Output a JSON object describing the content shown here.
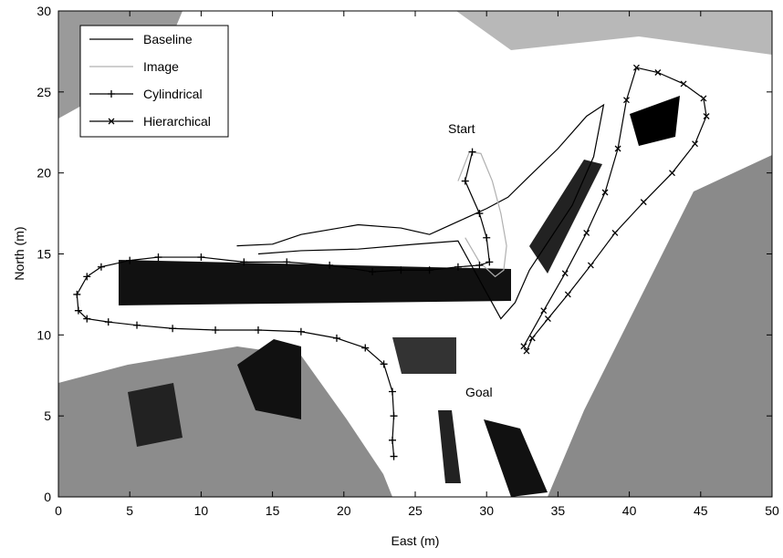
{
  "chart_data": {
    "type": "line",
    "xlabel": "East (m)",
    "ylabel": "North (m)",
    "xlim": [
      0,
      50
    ],
    "xticks": [
      0,
      5,
      10,
      15,
      20,
      25,
      30,
      35,
      40,
      45,
      50
    ],
    "ylim": [
      0,
      30
    ],
    "yticks": [
      0,
      5,
      10,
      15,
      20,
      25,
      30
    ],
    "legend": "upper left",
    "annotations": [
      "Start",
      "Goal"
    ],
    "series": [
      {
        "name": "Baseline",
        "color": "#000000",
        "marker": "none",
        "x": [
          12.5,
          15,
          17,
          21,
          24,
          26,
          28,
          30,
          31.5,
          33,
          35,
          37,
          38.2,
          37.5,
          36,
          34.5,
          33,
          32,
          31,
          28,
          25,
          21,
          17,
          14
        ],
        "values": [
          15.5,
          15.6,
          16.2,
          16.8,
          16.6,
          16.2,
          17,
          17.8,
          18.5,
          19.8,
          21.5,
          23.5,
          24.2,
          21,
          18,
          16,
          14,
          12,
          11,
          15.8,
          15.6,
          15.3,
          15.2,
          15
        ]
      },
      {
        "name": "Image",
        "color": "#b0b0b0",
        "marker": "none",
        "x": [
          28,
          28.8,
          29.6,
          30.4,
          31,
          31.4,
          31.2,
          30.6,
          29.5,
          28.5
        ],
        "values": [
          19.5,
          21.3,
          21.2,
          19.5,
          17.5,
          15.5,
          14,
          13.6,
          14.5,
          16
        ]
      },
      {
        "name": "Cylindrical",
        "color": "#000000",
        "marker": "plus",
        "x": [
          29,
          28.5,
          29.5,
          30,
          30.2,
          29.5,
          28,
          26,
          24,
          22,
          19,
          16,
          13,
          10,
          7,
          5,
          3,
          2,
          1.3,
          1.4,
          2,
          3.5,
          5.5,
          8,
          11,
          14,
          17,
          19.5,
          21.5,
          22.8,
          23.4,
          23.5,
          23.4,
          23.5
        ],
        "values": [
          21.3,
          19.5,
          17.5,
          16,
          14.5,
          14.3,
          14.2,
          14,
          14,
          13.9,
          14.3,
          14.5,
          14.5,
          14.8,
          14.8,
          14.6,
          14.2,
          13.6,
          12.5,
          11.5,
          11,
          10.8,
          10.6,
          10.4,
          10.3,
          10.3,
          10.2,
          9.8,
          9.2,
          8.2,
          6.5,
          5,
          3.5,
          2.5
        ]
      },
      {
        "name": "Hierarchical",
        "color": "#000000",
        "marker": "cross",
        "x": [
          32.6,
          34,
          35.5,
          37,
          38.3,
          39.2,
          39.8,
          40.5,
          42,
          43.8,
          45.2,
          45.4,
          44.6,
          43,
          41,
          39,
          37.3,
          35.7,
          34.3,
          33.2,
          32.8
        ],
        "values": [
          9.3,
          11.5,
          13.8,
          16.3,
          18.8,
          21.5,
          24.5,
          26.5,
          26.2,
          25.5,
          24.6,
          23.5,
          21.8,
          20,
          18.2,
          16.3,
          14.3,
          12.5,
          11,
          9.8,
          9
        ]
      }
    ]
  }
}
